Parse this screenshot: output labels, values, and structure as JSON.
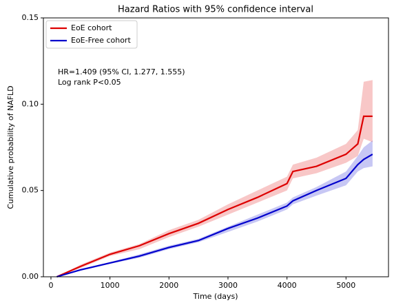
{
  "chart_data": {
    "type": "line",
    "title": "Hazard Ratios with 95% confidence interval",
    "x_label": "Time (days)",
    "y_label": "Cumulative probability of NAFLD",
    "annotations": [
      "HR=1.409 (95% CI, 1.277, 1.555)",
      "Log rank P<0.05"
    ],
    "legend": "upper left",
    "x": [
      100,
      500,
      1000,
      1500,
      2000,
      2500,
      3000,
      3500,
      4000,
      4100,
      4500,
      5000,
      5200,
      5300,
      5450
    ],
    "series": [
      {
        "name": "EoE cohort",
        "color": "#dd0000",
        "values": [
          0,
          0.006,
          0.013,
          0.018,
          0.025,
          0.031,
          0.039,
          0.046,
          0.054,
          0.061,
          0.064,
          0.071,
          0.077,
          0.093,
          0.093
        ],
        "lower": [
          0,
          0.005,
          0.012,
          0.016,
          0.023,
          0.029,
          0.036,
          0.043,
          0.05,
          0.057,
          0.06,
          0.066,
          0.07,
          0.08,
          0.078
        ],
        "upper": [
          0,
          0.007,
          0.014,
          0.019,
          0.027,
          0.033,
          0.042,
          0.05,
          0.058,
          0.065,
          0.069,
          0.077,
          0.085,
          0.113,
          0.114
        ]
      },
      {
        "name": "EoE-Free cohort",
        "color": "#0000cc",
        "values": [
          0,
          0.004,
          0.008,
          0.012,
          0.017,
          0.021,
          0.028,
          0.034,
          0.041,
          0.044,
          0.05,
          0.057,
          0.065,
          0.068,
          0.071
        ],
        "lower": [
          0,
          0.0035,
          0.0075,
          0.011,
          0.016,
          0.02,
          0.026,
          0.032,
          0.039,
          0.042,
          0.047,
          0.053,
          0.061,
          0.063,
          0.064
        ],
        "upper": [
          0,
          0.0045,
          0.0085,
          0.013,
          0.018,
          0.022,
          0.029,
          0.036,
          0.043,
          0.046,
          0.052,
          0.061,
          0.07,
          0.075,
          0.079
        ]
      }
    ],
    "xlim": [
      -128,
      5720
    ],
    "xticks": [
      0,
      1000,
      2000,
      3000,
      4000,
      5000
    ],
    "ylim": [
      0,
      0.15
    ],
    "yticks": [
      {
        "value": 0,
        "label": "0.00"
      },
      {
        "value": 0.05,
        "label": "0.05"
      },
      {
        "value": 0.1,
        "label": "0.10"
      },
      {
        "value": 0.15,
        "label": "0.15"
      }
    ]
  }
}
